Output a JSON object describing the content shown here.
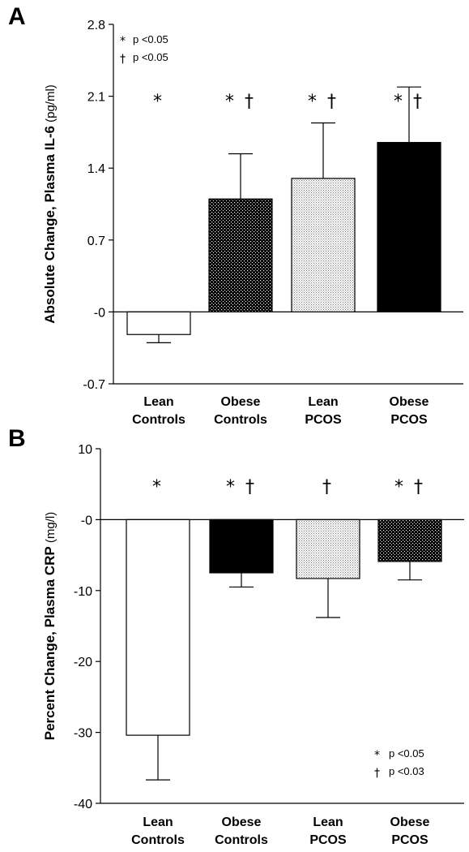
{
  "chart_data": [
    {
      "type": "bar",
      "panel": "A",
      "title": "",
      "ylabel": "Absolute Change, Plasma IL-6",
      "ylabel_unit": "(pg/ml)",
      "ylim": [
        -0.7,
        2.8
      ],
      "yticks": [
        "-0.7",
        "-0",
        "0.7",
        "1.4",
        "2.1",
        "2.8"
      ],
      "ytick_values": [
        -0.7,
        0,
        0.7,
        1.4,
        2.1,
        2.8
      ],
      "categories": [
        {
          "line1": "Lean",
          "line2": "Controls"
        },
        {
          "line1": "Obese",
          "line2": "Controls"
        },
        {
          "line1": "Lean",
          "line2": "PCOS"
        },
        {
          "line1": "Obese",
          "line2": "PCOS"
        }
      ],
      "values": [
        -0.22,
        1.1,
        1.3,
        1.65
      ],
      "errors": [
        0.08,
        0.44,
        0.54,
        0.54
      ],
      "fills": [
        "white",
        "dense-dots",
        "light-dots",
        "black"
      ],
      "significance": [
        "*",
        "* †",
        "* †",
        "* †"
      ],
      "legend": [
        {
          "symbol": "*",
          "text": "p <0.05"
        },
        {
          "symbol": "†",
          "text": "p <0.05"
        }
      ],
      "legend_position": "top-left"
    },
    {
      "type": "bar",
      "panel": "B",
      "title": "",
      "ylabel": "Percent Change, Plasma CRP",
      "ylabel_unit": "(mg/l)",
      "ylim": [
        -40,
        10
      ],
      "yticks": [
        "-40",
        "-30",
        "-20",
        "-10",
        "-0",
        "10"
      ],
      "ytick_values": [
        -40,
        -30,
        -20,
        -10,
        0,
        10
      ],
      "categories": [
        {
          "line1": "Lean",
          "line2": "Controls"
        },
        {
          "line1": "Obese",
          "line2": "Controls"
        },
        {
          "line1": "Lean",
          "line2": "PCOS"
        },
        {
          "line1": "Obese",
          "line2": "PCOS"
        }
      ],
      "values": [
        -30.4,
        -7.5,
        -8.3,
        -5.9
      ],
      "errors": [
        6.3,
        2.0,
        5.5,
        2.6
      ],
      "fills": [
        "white",
        "black",
        "light-dots",
        "dense-dots"
      ],
      "significance": [
        "*",
        "* †",
        "†",
        "* †"
      ],
      "legend": [
        {
          "symbol": "*",
          "text": "p <0.05"
        },
        {
          "symbol": "†",
          "text": "p <0.03"
        }
      ],
      "legend_position": "bottom-right"
    }
  ]
}
